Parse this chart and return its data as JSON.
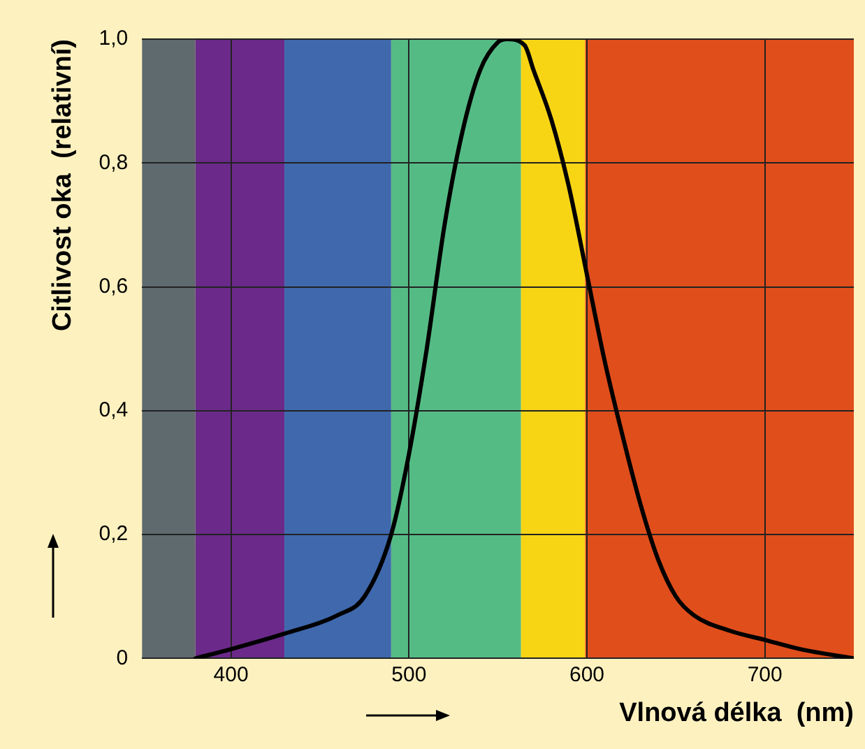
{
  "chart_data": {
    "type": "line",
    "xlabel": "Vlnová délka  (nm)",
    "ylabel": "Citlivost oka  (relativní)",
    "x": [
      380,
      400,
      430,
      460,
      475,
      490,
      500,
      510,
      520,
      530,
      540,
      550,
      555,
      565,
      570,
      580,
      590,
      600,
      610,
      620,
      630,
      640,
      650,
      660,
      680,
      700,
      720,
      750
    ],
    "series": [
      {
        "color": "#000000",
        "values": [
          0,
          0.015,
          0.04,
          0.07,
          0.1,
          0.2,
          0.33,
          0.5,
          0.7,
          0.85,
          0.95,
          0.995,
          1.0,
          0.99,
          0.95,
          0.87,
          0.76,
          0.62,
          0.48,
          0.36,
          0.25,
          0.16,
          0.1,
          0.07,
          0.045,
          0.03,
          0.015,
          0
        ]
      }
    ],
    "xlim": [
      350,
      750
    ],
    "xticks": [
      400,
      500,
      600,
      700
    ],
    "ylim": [
      0,
      1
    ],
    "yticks": [
      0,
      {
        "value": 0.2,
        "label": "0,2"
      },
      {
        "value": 0.4,
        "label": "0,4"
      },
      {
        "value": 0.6,
        "label": "0,6"
      },
      {
        "value": 0.8,
        "label": "0,8"
      },
      {
        "value": 1,
        "label": "1,0"
      }
    ],
    "bands": [
      {
        "axis": "x",
        "from": 350,
        "to": 380,
        "color": "#5f6a6f"
      },
      {
        "axis": "x",
        "from": 380,
        "to": 430,
        "color": "#6b2a8a"
      },
      {
        "axis": "x",
        "from": 430,
        "to": 490,
        "color": "#3f68ad"
      },
      {
        "axis": "x",
        "from": 490,
        "to": 563,
        "color": "#55bb85"
      },
      {
        "axis": "x",
        "from": 563,
        "to": 599,
        "color": "#f7d515"
      },
      {
        "axis": "x",
        "from": 599,
        "to": 750,
        "color": "#e04e1c"
      }
    ],
    "grid": true,
    "legend": false,
    "marker": "none",
    "line_style": "solid"
  }
}
